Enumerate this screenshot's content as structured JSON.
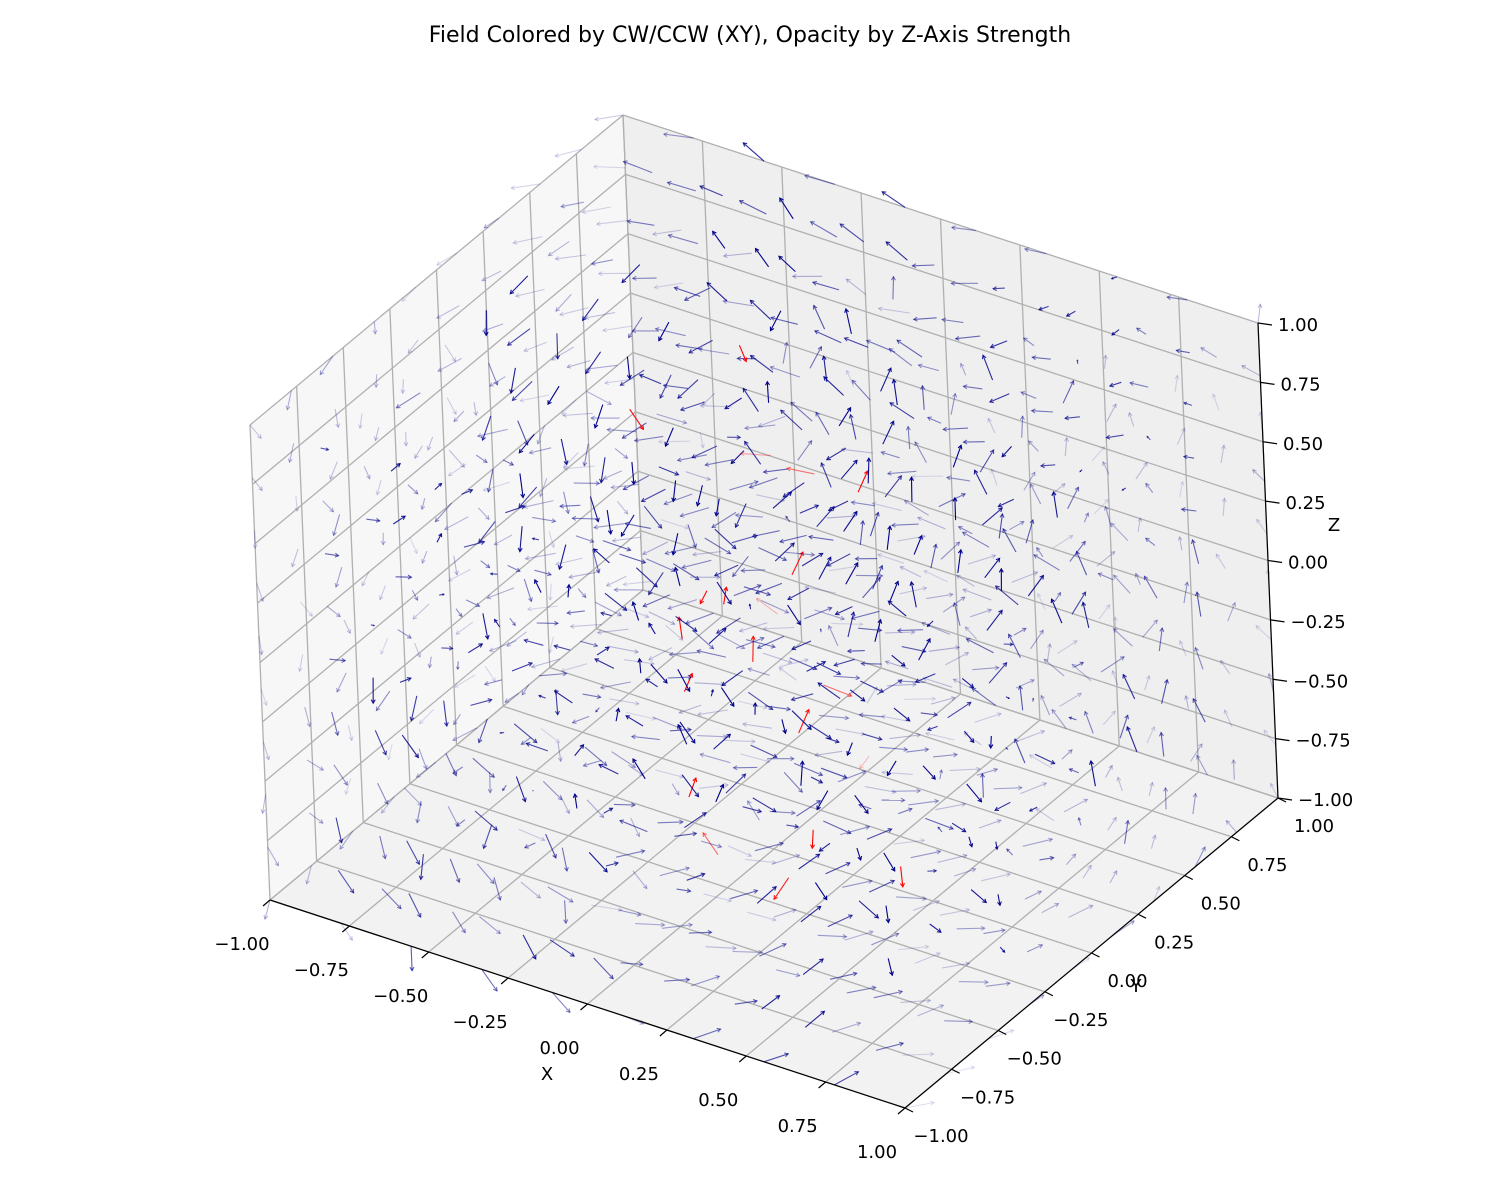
{
  "chart_data": {
    "type": "quiver3d",
    "title": "Field Colored by CW/CCW (XY), Opacity by Z-Axis Strength",
    "xlabel": "X",
    "ylabel": "Y",
    "zlabel": "Z",
    "xlim": [
      -1,
      1
    ],
    "ylim": [
      -1,
      1
    ],
    "zlim": [
      -1,
      1
    ],
    "xticks": [
      -1.0,
      -0.75,
      -0.5,
      -0.25,
      0.0,
      0.25,
      0.5,
      0.75,
      1.0
    ],
    "yticks": [
      -1.0,
      -0.75,
      -0.5,
      -0.25,
      0.0,
      0.25,
      0.5,
      0.75,
      1.0
    ],
    "zticks": [
      -1.0,
      -0.75,
      -0.5,
      -0.25,
      0.0,
      0.25,
      0.5,
      0.75,
      1.0
    ],
    "xtick_labels": [
      "−1.00",
      "−0.75",
      "−0.50",
      "−0.25",
      "0.00",
      "0.25",
      "0.50",
      "0.75",
      "1.00"
    ],
    "ytick_labels": [
      "−1.00",
      "−0.75",
      "−0.50",
      "−0.25",
      "0.00",
      "0.25",
      "0.50",
      "0.75",
      "1.00"
    ],
    "ztick_labels": [
      "−1.00",
      "−0.75",
      "−0.50",
      "−0.25",
      "0.00",
      "0.25",
      "0.50",
      "0.75",
      "1.00"
    ],
    "grid": true,
    "grid_points_per_axis": 10,
    "colors": {
      "cw": "#ff0000",
      "ccw": "#00008b",
      "pane": "#f2f2f2",
      "grid": "#b0b0b0"
    }
  }
}
